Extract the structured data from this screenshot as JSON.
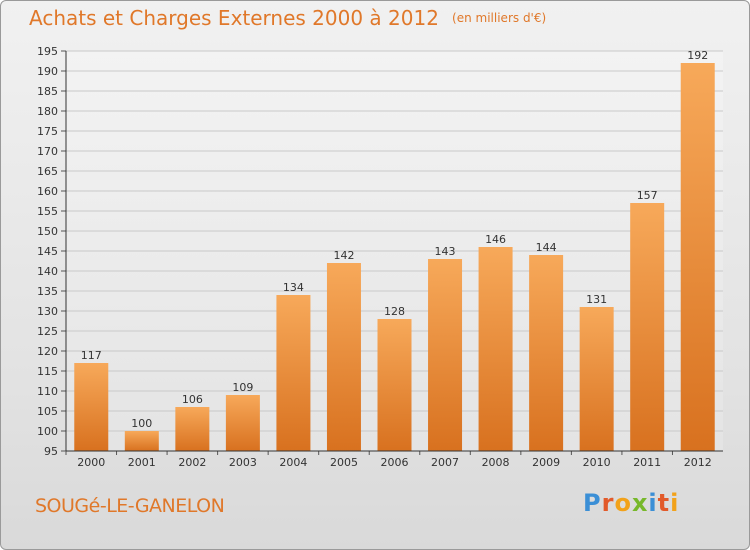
{
  "header": {
    "title": "Achats et Charges Externes 2000 à 2012",
    "unit": "(en milliers d'€)"
  },
  "footer": {
    "commune": "SOUGé-LE-GANELON",
    "logo": "Proxiti"
  },
  "colors": {
    "bar_light": "#f7a95a",
    "bar_dark": "#d8711f",
    "title": "#e0782a",
    "grid": "#c9c9c9"
  },
  "chart_data": {
    "type": "bar",
    "categories": [
      "2000",
      "2001",
      "2002",
      "2003",
      "2004",
      "2005",
      "2006",
      "2007",
      "2008",
      "2009",
      "2010",
      "2011",
      "2012"
    ],
    "values": [
      117,
      100,
      106,
      109,
      134,
      142,
      128,
      143,
      146,
      144,
      131,
      157,
      192
    ],
    "ylim": [
      95,
      195
    ],
    "yticks": [
      95,
      100,
      105,
      110,
      115,
      120,
      125,
      130,
      135,
      140,
      145,
      150,
      155,
      160,
      165,
      170,
      175,
      180,
      185,
      190,
      195
    ],
    "grid": true,
    "xlabel": "",
    "ylabel": ""
  }
}
